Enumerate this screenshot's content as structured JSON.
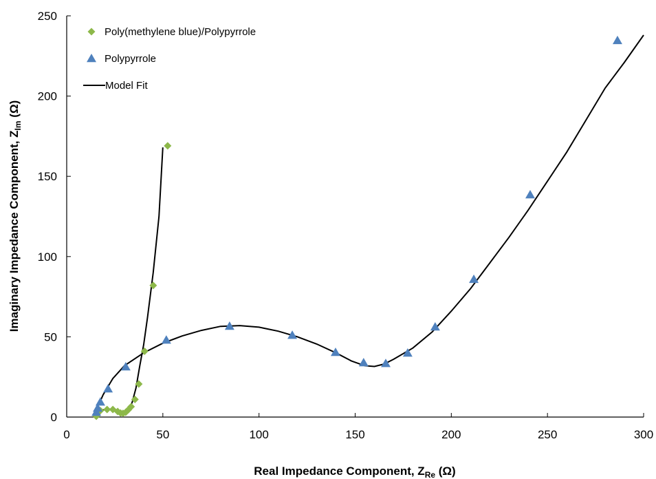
{
  "chart_data": {
    "type": "scatter",
    "x_label": {
      "text": "Real Impedance Component, Z",
      "sub": "Re",
      "unit": " (Ω)"
    },
    "y_label": {
      "text": "Imaginary Impedance Component, Z",
      "sub": "Im",
      "unit": " (Ω)"
    },
    "xlim": [
      0,
      300
    ],
    "xticks": [
      0,
      50,
      100,
      150,
      200,
      250,
      300
    ],
    "ylim": [
      0,
      250
    ],
    "yticks": [
      0,
      50,
      100,
      150,
      200,
      250
    ],
    "grid": false,
    "legend": "top-left",
    "series": [
      {
        "name": "Poly(methylene blue)/Polypyrrole",
        "color": "#8db84a",
        "marker": "diamond",
        "x": [
          15.4,
          17.5,
          21,
          24,
          26.5,
          28,
          29.3,
          30.7,
          32,
          33.5,
          35.5,
          37.5,
          40.5,
          45,
          52.5
        ],
        "values": [
          0.5,
          4,
          4.7,
          4.7,
          3.5,
          2.5,
          2.3,
          3,
          4.5,
          6.5,
          11,
          20.6,
          41,
          82,
          169
        ]
      },
      {
        "name": "Polypyrrole",
        "color": "#4f81bd",
        "marker": "triangle",
        "x": [
          15.4,
          16.1,
          17.5,
          21.5,
          30.7,
          51.8,
          84.7,
          117.3,
          139.8,
          154.4,
          165.9,
          177.3,
          191.6,
          211.7,
          241,
          286.4
        ],
        "values": [
          3,
          5.6,
          9.4,
          17.6,
          31.3,
          48,
          56.6,
          51,
          40.3,
          33.9,
          33.4,
          39.9,
          56.2,
          85.8,
          138.5,
          234.6
        ]
      },
      {
        "name": "Model Fit",
        "color": "#000000",
        "marker": "line",
        "x": [
          14.5,
          16,
          19,
          22,
          25,
          27.5,
          30,
          32,
          34,
          36,
          38,
          40,
          42,
          45,
          48,
          50,
          null,
          14.5,
          16,
          19,
          24,
          30,
          40,
          50,
          60,
          70,
          80,
          90,
          100,
          110,
          120,
          130,
          140,
          148,
          155,
          160,
          165,
          170,
          180,
          190,
          200,
          210,
          220,
          230,
          240,
          250,
          260,
          270,
          280,
          290,
          300
        ],
        "values": [
          0,
          3,
          4.5,
          5,
          4.2,
          3,
          3.5,
          5,
          9,
          18,
          32,
          45,
          62,
          90,
          125,
          168,
          null,
          0,
          6,
          14,
          24,
          32,
          40,
          46,
          50.5,
          54,
          56.5,
          57,
          56,
          53.5,
          50,
          45.5,
          40,
          35,
          32,
          31.5,
          33,
          36,
          43,
          53,
          66,
          80,
          96,
          112,
          129,
          147,
          165,
          185,
          205,
          221,
          238
        ]
      }
    ]
  }
}
